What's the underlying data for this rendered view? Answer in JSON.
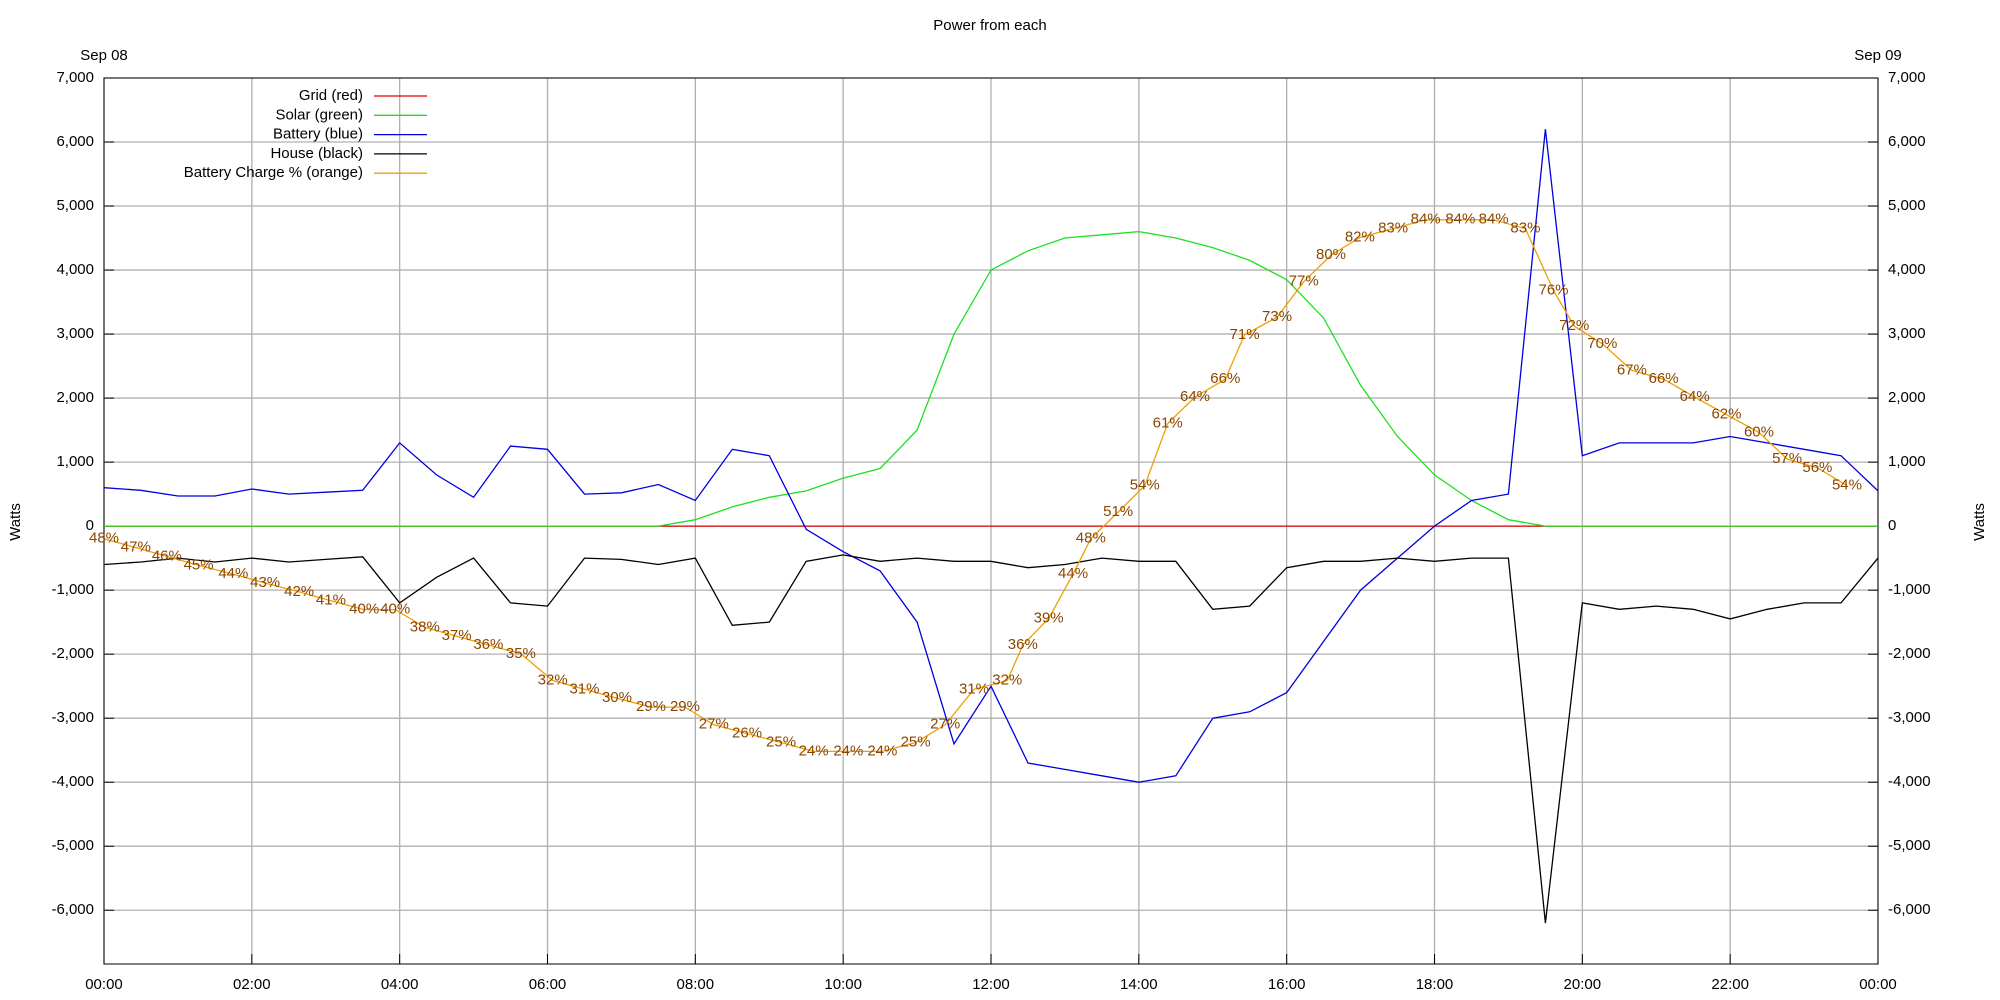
{
  "chart_data": {
    "type": "line",
    "title": "Power from each",
    "date_labels": [
      "Sep 08",
      "Sep 09"
    ],
    "ylabel": "Watts",
    "legend": "upper left",
    "grid": true,
    "xlim": [
      0,
      24
    ],
    "xticks": [
      {
        "value": 0,
        "label": "00:00"
      },
      {
        "value": 2,
        "label": "02:00"
      },
      {
        "value": 4,
        "label": "04:00"
      },
      {
        "value": 6,
        "label": "06:00"
      },
      {
        "value": 8,
        "label": "08:00"
      },
      {
        "value": 10,
        "label": "10:00"
      },
      {
        "value": 12,
        "label": "12:00"
      },
      {
        "value": 14,
        "label": "14:00"
      },
      {
        "value": 16,
        "label": "16:00"
      },
      {
        "value": 18,
        "label": "18:00"
      },
      {
        "value": 20,
        "label": "20:00"
      },
      {
        "value": 22,
        "label": "22:00"
      },
      {
        "value": 24,
        "label": "00:00"
      }
    ],
    "ylim": [
      -6840,
      7000
    ],
    "yticks": [
      {
        "value": -6000,
        "label": "-6,000"
      },
      {
        "value": -5000,
        "label": "-5,000"
      },
      {
        "value": -4000,
        "label": "-4,000"
      },
      {
        "value": -3000,
        "label": "-3,000"
      },
      {
        "value": -2000,
        "label": "-2,000"
      },
      {
        "value": -1000,
        "label": "-1,000"
      },
      0,
      {
        "value": 1000,
        "label": "1,000"
      },
      {
        "value": 2000,
        "label": "2,000"
      },
      {
        "value": 3000,
        "label": "3,000"
      },
      {
        "value": 4000,
        "label": "4,000"
      },
      {
        "value": 5000,
        "label": "5,000"
      },
      {
        "value": 6000,
        "label": "6,000"
      },
      {
        "value": 7000,
        "label": "7,000"
      }
    ],
    "y2lim": [
      0,
      100
    ],
    "x": [
      0,
      0.5,
      1,
      1.5,
      2,
      2.5,
      3,
      3.5,
      4,
      4.5,
      5,
      5.5,
      6,
      6.5,
      7,
      7.5,
      8,
      8.5,
      9,
      9.5,
      10,
      10.5,
      11,
      11.5,
      12,
      12.5,
      13,
      13.5,
      14,
      14.5,
      15,
      15.5,
      16,
      16.5,
      17,
      17.5,
      18,
      18.5,
      19,
      19.5,
      20,
      20.5,
      21,
      21.5,
      22,
      22.5,
      23,
      23.5,
      24
    ],
    "series": [
      {
        "name": "Grid (red)",
        "color": "#e00000",
        "values": [
          0,
          0,
          0,
          0,
          0,
          0,
          0,
          0,
          0,
          0,
          0,
          0,
          0,
          0,
          0,
          0,
          0,
          0,
          0,
          0,
          0,
          0,
          0,
          0,
          0,
          0,
          0,
          0,
          0,
          0,
          0,
          0,
          0,
          0,
          0,
          0,
          0,
          0,
          0,
          0,
          0,
          0,
          0,
          0,
          0,
          0,
          0,
          0,
          0
        ]
      },
      {
        "name": "Solar (green)",
        "color": "#1ee01e",
        "values": [
          0,
          0,
          0,
          0,
          0,
          0,
          0,
          0,
          0,
          0,
          0,
          0,
          0,
          0,
          0,
          0,
          100,
          300,
          450,
          550,
          750,
          900,
          1500,
          3000,
          4000,
          4300,
          4500,
          4550,
          4600,
          4500,
          4350,
          4150,
          3850,
          3250,
          2200,
          1400,
          800,
          400,
          100,
          0,
          0,
          0,
          0,
          0,
          0,
          0,
          0,
          0,
          0
        ]
      },
      {
        "name": "Battery (blue)",
        "color": "#0000e0",
        "values": [
          600,
          560,
          470,
          470,
          580,
          500,
          530,
          560,
          1300,
          800,
          450,
          1250,
          1200,
          500,
          520,
          650,
          400,
          1200,
          1100,
          -50,
          -400,
          -700,
          -1500,
          -3400,
          -2500,
          -3700,
          -3800,
          -3900,
          -4000,
          -3900,
          -3000,
          -2900,
          -2600,
          -1800,
          -1000,
          -500,
          0,
          400,
          500,
          6200,
          1100,
          1300,
          1300,
          1300,
          1400,
          1300,
          1200,
          1100,
          550
        ]
      },
      {
        "name": "House (black)",
        "color": "#000000",
        "values": [
          -600,
          -560,
          -500,
          -560,
          -500,
          -560,
          -520,
          -480,
          -1200,
          -800,
          -500,
          -1200,
          -1250,
          -500,
          -520,
          -600,
          -500,
          -1550,
          -1500,
          -550,
          -450,
          -550,
          -500,
          -550,
          -550,
          -650,
          -600,
          -500,
          -550,
          -550,
          -1300,
          -1250,
          -650,
          -550,
          -550,
          -500,
          -550,
          -500,
          -500,
          -6200,
          -1200,
          -1300,
          -1250,
          -1300,
          -1450,
          -1300,
          -1200,
          -1200,
          -500
        ]
      },
      {
        "name": "Battery Charge % (orange)",
        "color": "#f0a000",
        "label_color": "#8b4500",
        "axis": "y2",
        "x": [
          0,
          0.43,
          0.85,
          1.28,
          1.75,
          2.18,
          2.64,
          3.07,
          3.52,
          3.94,
          4.34,
          4.77,
          5.2,
          5.64,
          6.07,
          6.5,
          6.94,
          7.4,
          7.86,
          8.25,
          8.7,
          9.16,
          9.6,
          10.07,
          10.53,
          10.98,
          11.38,
          11.77,
          12.22,
          12.43,
          12.78,
          13.11,
          13.35,
          13.72,
          14.08,
          14.39,
          14.76,
          15.17,
          15.43,
          15.87,
          16.23,
          16.6,
          16.99,
          17.44,
          17.88,
          18.35,
          18.8,
          19.23,
          19.61,
          19.89,
          20.27,
          20.67,
          21.1,
          21.52,
          21.95,
          22.39,
          22.77,
          23.18,
          23.58
        ],
        "values": [
          48,
          47,
          46,
          45,
          44,
          43,
          42,
          41,
          40,
          40,
          38,
          37,
          36,
          35,
          32,
          31,
          30,
          29,
          29,
          27,
          26,
          25,
          24,
          24,
          24,
          25,
          27,
          31,
          32,
          36,
          39,
          44,
          48,
          51,
          54,
          61,
          64,
          66,
          71,
          73,
          77,
          80,
          82,
          83,
          84,
          84,
          84,
          83,
          76,
          72,
          70,
          67,
          66,
          64,
          62,
          60,
          57,
          56,
          54
        ],
        "value_labels": [
          "48%",
          "47%",
          "46%",
          "45%",
          "44%",
          "43%",
          "42%",
          "41%",
          "40%",
          "40%",
          "38%",
          "37%",
          "36%",
          "35%",
          "32%",
          "31%",
          "30%",
          "29%",
          "29%",
          "27%",
          "26%",
          "25%",
          "24%",
          "24%",
          "24%",
          "25%",
          "27%",
          "31%",
          "32%",
          "36%",
          "39%",
          "44%",
          "48%",
          "51%",
          "54%",
          "61%",
          "64%",
          "66%",
          "71%",
          "73%",
          "77%",
          "80%",
          "82%",
          "83%",
          "84%",
          "84%",
          "84%",
          "83%",
          "76%",
          "72%",
          "70%",
          "67%",
          "66%",
          "64%",
          "62%",
          "60%",
          "57%",
          "56%",
          "54%"
        ]
      }
    ]
  }
}
